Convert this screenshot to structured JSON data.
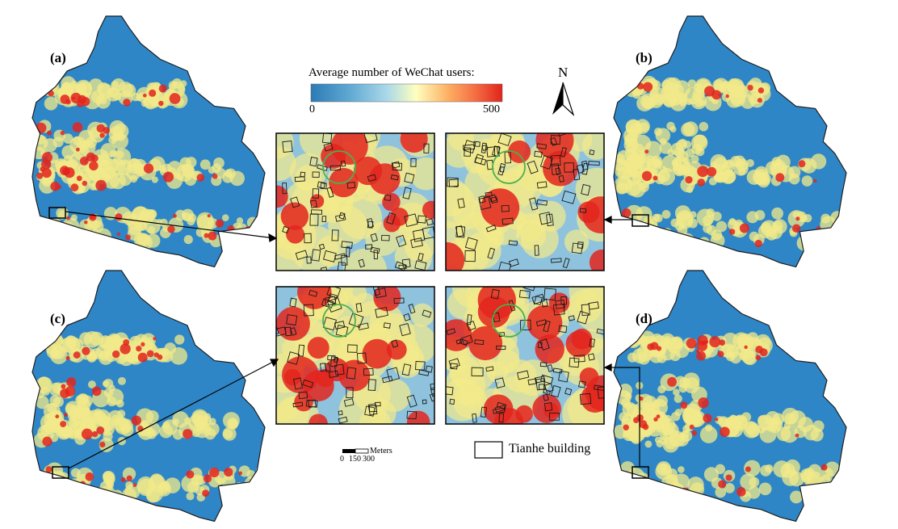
{
  "panels": [
    {
      "label": "(a)",
      "intensity": 1.0
    },
    {
      "label": "(b)",
      "intensity": 0.45
    },
    {
      "label": "(c)",
      "intensity": 0.75
    },
    {
      "label": "(d)",
      "intensity": 0.7
    }
  ],
  "legend": {
    "title": "Average number of WeChat users:",
    "min_label": "0",
    "max_label": "500",
    "gradient": [
      "#2c7bb6",
      "#5fa8d3",
      "#abd9e9",
      "#ffffbf",
      "#fdae61",
      "#f46d43",
      "#e0241b"
    ]
  },
  "north_arrow": {
    "label": "N"
  },
  "scale_bar": {
    "unit": "Meters",
    "ticks": [
      "0",
      "150",
      "300"
    ]
  },
  "building_legend": {
    "label": "Tianhe building"
  },
  "colors": {
    "water_blue": "#2f86c6",
    "yellow": "#f2e98a",
    "red": "#e3241d",
    "outline": "#1a1a1a",
    "ring": "#4caf50"
  }
}
